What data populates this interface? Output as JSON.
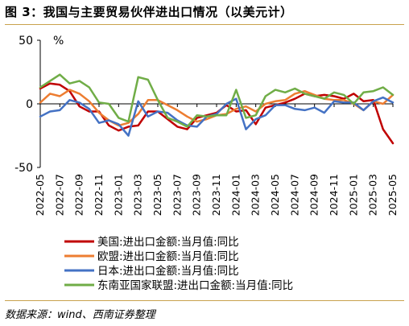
{
  "figure": {
    "title": "图 3：我国与主要贸易伙伴进出口情况（以美元计）",
    "source": "数据来源：wind、西南证券整理"
  },
  "chart_data": {
    "type": "line",
    "x": [
      "2022-05",
      "2022-06",
      "2022-07",
      "2022-08",
      "2022-09",
      "2022-10",
      "2022-11",
      "2022-12",
      "2023-01",
      "2023-02",
      "2023-03",
      "2023-04",
      "2023-05",
      "2023-06",
      "2023-07",
      "2023-08",
      "2023-09",
      "2023-10",
      "2023-11",
      "2023-12",
      "2024-01",
      "2024-02",
      "2024-03",
      "2024-04",
      "2024-05",
      "2024-06",
      "2024-07",
      "2024-08",
      "2024-09",
      "2024-10",
      "2024-11",
      "2024-12",
      "2025-01",
      "2025-02",
      "2025-03",
      "2025-04",
      "2025-05"
    ],
    "tick_labels": [
      "2022-05",
      "2022-07",
      "2022-09",
      "2022-11",
      "2023-01",
      "2023-03",
      "2023-05",
      "2023-07",
      "2023-09",
      "2023-11",
      "2024-01",
      "2024-03",
      "2024-05",
      "2024-07",
      "2024-09",
      "2024-11",
      "2025-01",
      "2025-03",
      "2025-05"
    ],
    "ylim": [
      -50,
      50
    ],
    "yticks": [
      -50,
      0,
      50
    ],
    "y_unit": "%",
    "grid": false,
    "legend_position": "bottom-left",
    "series": [
      {
        "name": "美国:进出口金额:当月值:同比",
        "color": "#c00000",
        "values": [
          12,
          16,
          15,
          10,
          -2,
          -6,
          -6,
          -17,
          -21,
          -18,
          -17,
          -6,
          -6,
          -12,
          -18,
          -20,
          -11,
          -9,
          -7,
          -1,
          -6,
          -5,
          -16,
          -3,
          -1,
          1,
          4,
          8,
          6,
          7,
          6,
          4,
          8,
          2,
          3,
          -20,
          -31
        ]
      },
      {
        "name": "欧盟:进出口金额:当月值:同比",
        "color": "#ed7d31",
        "values": [
          1,
          8,
          6,
          11,
          8,
          2,
          -7,
          -13,
          -17,
          -15,
          -8,
          3,
          3,
          -1,
          -5,
          -10,
          -14,
          -12,
          -9,
          -8,
          -4,
          -2,
          -6,
          0,
          2,
          3,
          8,
          10,
          7,
          4,
          3,
          3,
          0,
          -5,
          2,
          0,
          7
        ]
      },
      {
        "name": "日本:进出口金额:当月值:同比",
        "color": "#4472c4",
        "values": [
          -10,
          -6,
          -5,
          3,
          1,
          -4,
          -15,
          -13,
          -16,
          -25,
          2,
          -10,
          -6,
          -7,
          -13,
          -17,
          -18,
          -10,
          -8,
          0,
          4,
          -20,
          -12,
          -9,
          -1,
          -1,
          -4,
          -5,
          -3,
          -7,
          2,
          1,
          1,
          -5,
          2,
          5,
          1
        ]
      },
      {
        "name": "东南亚国家联盟:进出口金额:当月值:同比",
        "color": "#70ad47",
        "values": [
          13,
          18,
          23,
          16,
          18,
          13,
          1,
          0,
          -11,
          -14,
          21,
          19,
          3,
          -11,
          -14,
          -18,
          -9,
          -10,
          -9,
          -9,
          11,
          -11,
          -9,
          6,
          11,
          9,
          12,
          8,
          6,
          4,
          9,
          7,
          0,
          9,
          10,
          13,
          7
        ]
      }
    ]
  }
}
